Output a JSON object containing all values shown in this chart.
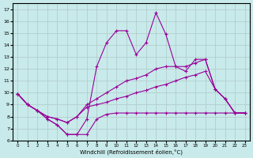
{
  "xlabel": "Windchill (Refroidissement éolien,°C)",
  "background_color": "#c8eaea",
  "grid_color": "#b0c8c8",
  "line_color": "#990099",
  "ylim": [
    6,
    17.5
  ],
  "xlim": [
    -0.5,
    23.5
  ],
  "yticks": [
    6,
    7,
    8,
    9,
    10,
    11,
    12,
    13,
    14,
    15,
    16,
    17
  ],
  "xticks": [
    0,
    1,
    2,
    3,
    4,
    5,
    6,
    7,
    8,
    9,
    10,
    11,
    12,
    13,
    14,
    15,
    16,
    17,
    18,
    19,
    20,
    21,
    22,
    23
  ],
  "line_spiky": {
    "x": [
      0,
      1,
      2,
      3,
      4,
      5,
      6,
      7,
      8,
      9,
      10,
      11,
      12,
      13,
      14,
      15,
      16,
      17,
      18,
      19,
      20,
      21,
      22,
      23
    ],
    "y": [
      9.9,
      9.0,
      8.5,
      7.8,
      7.3,
      6.5,
      6.5,
      7.8,
      12.2,
      14.2,
      15.2,
      15.2,
      13.2,
      14.2,
      16.7,
      14.9,
      12.2,
      11.8,
      12.8,
      12.8,
      10.3,
      9.5,
      8.3,
      8.3
    ]
  },
  "line_upper": {
    "x": [
      0,
      1,
      2,
      3,
      4,
      5,
      6,
      7,
      8,
      9,
      10,
      11,
      12,
      13,
      14,
      15,
      16,
      17,
      18,
      19,
      20,
      21,
      22,
      23
    ],
    "y": [
      9.9,
      9.0,
      8.5,
      8.0,
      7.8,
      7.5,
      8.0,
      9.0,
      9.5,
      10.0,
      10.5,
      11.0,
      11.2,
      11.5,
      12.0,
      12.2,
      12.2,
      12.2,
      12.5,
      12.8,
      10.3,
      9.5,
      8.3,
      8.3
    ]
  },
  "line_mid": {
    "x": [
      0,
      1,
      2,
      3,
      4,
      5,
      6,
      7,
      8,
      9,
      10,
      11,
      12,
      13,
      14,
      15,
      16,
      17,
      18,
      19,
      20,
      21,
      22,
      23
    ],
    "y": [
      9.9,
      9.0,
      8.5,
      8.0,
      7.8,
      7.5,
      8.0,
      8.8,
      9.0,
      9.2,
      9.5,
      9.7,
      10.0,
      10.2,
      10.5,
      10.7,
      11.0,
      11.3,
      11.5,
      11.8,
      10.3,
      9.5,
      8.3,
      8.3
    ]
  },
  "line_flat": {
    "x": [
      0,
      1,
      2,
      3,
      4,
      5,
      6,
      7,
      8,
      9,
      10,
      11,
      12,
      13,
      14,
      15,
      16,
      17,
      18,
      19,
      20,
      21,
      22,
      23
    ],
    "y": [
      9.9,
      9.0,
      8.5,
      7.8,
      7.3,
      6.5,
      6.5,
      6.5,
      7.8,
      8.2,
      8.3,
      8.3,
      8.3,
      8.3,
      8.3,
      8.3,
      8.3,
      8.3,
      8.3,
      8.3,
      8.3,
      8.3,
      8.3,
      8.3
    ]
  }
}
